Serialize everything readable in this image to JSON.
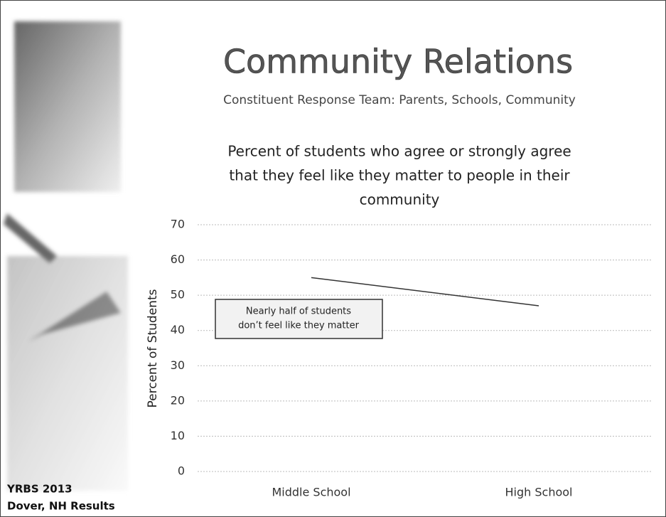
{
  "slide": {
    "title": "Community Relations",
    "subtitle": "Constituent Response Team: Parents, Schools, Community",
    "footer": [
      "YRBS 2013",
      "Dover, NH Results"
    ]
  },
  "chart_data": {
    "type": "line",
    "title": [
      "Percent of students who agree or strongly agree",
      "that they feel like they matter to people in their",
      "community"
    ],
    "y_label": "Percent of Students",
    "annotation": [
      "Nearly half of students",
      "don’t feel like they matter"
    ],
    "categories": [
      "Middle School",
      "High School"
    ],
    "values": [
      55,
      47
    ],
    "color": "#333333",
    "ylim": [
      0,
      70
    ],
    "yticks": [
      0,
      10,
      20,
      30,
      40,
      50,
      60,
      70
    ],
    "grid": true
  }
}
